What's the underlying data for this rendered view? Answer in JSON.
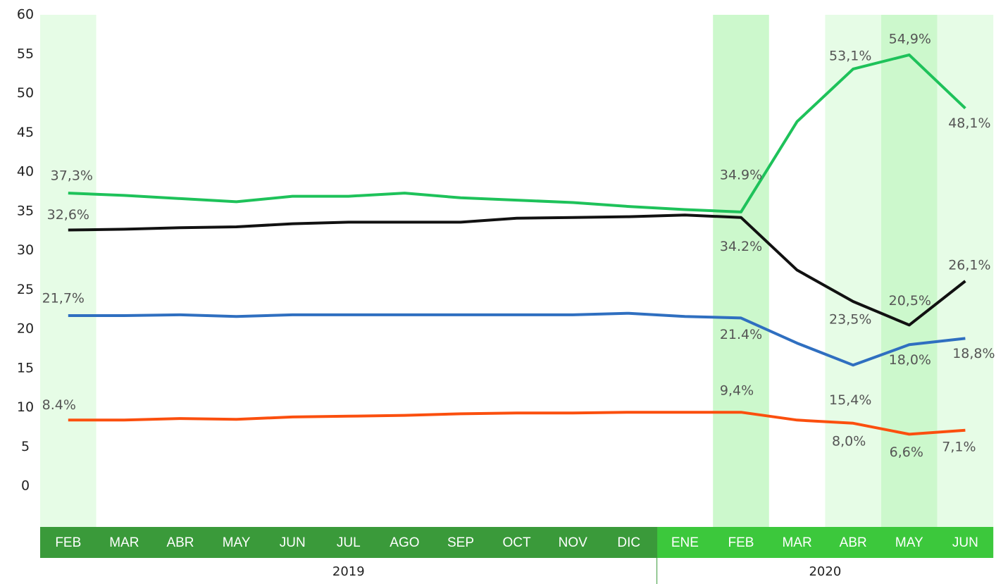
{
  "chart_data": {
    "type": "line",
    "categories": [
      "FEB",
      "MAR",
      "ABR",
      "MAY",
      "JUN",
      "JUL",
      "AGO",
      "SEP",
      "OCT",
      "NOV",
      "DIC",
      "ENE",
      "FEB",
      "MAR",
      "ABR",
      "MAY",
      "JUN"
    ],
    "groups": [
      {
        "label": "2019",
        "start": 0,
        "end": 10,
        "color": "#3a9a3a"
      },
      {
        "label": "2020",
        "start": 11,
        "end": 16,
        "color": "#3cc83c"
      }
    ],
    "highlight_bands": [
      {
        "category": 0,
        "color": "#e6fce6"
      },
      {
        "category": 12,
        "color": "#ccf8cc"
      },
      {
        "category": 14,
        "color": "#e6fce6"
      },
      {
        "category": 15,
        "color": "#ccf8cc"
      },
      {
        "category": 16,
        "color": "#e6fce6"
      }
    ],
    "ylim": [
      0,
      60
    ],
    "yticks": [
      0,
      5,
      10,
      15,
      20,
      25,
      30,
      35,
      40,
      45,
      50,
      55,
      60
    ],
    "series": [
      {
        "color": "#1ec25a",
        "values": [
          37.3,
          37.0,
          36.6,
          36.2,
          36.9,
          36.9,
          37.3,
          36.7,
          36.4,
          36.1,
          35.6,
          35.2,
          34.9,
          46.4,
          53.1,
          54.9,
          48.1
        ],
        "value_labels": [
          "37,3%",
          null,
          null,
          null,
          null,
          null,
          null,
          null,
          null,
          null,
          null,
          null,
          "34.9%",
          null,
          "53,1%",
          "54,9%",
          "48,1%"
        ]
      },
      {
        "color": "#111111",
        "values": [
          32.6,
          32.7,
          32.9,
          33.0,
          33.4,
          33.6,
          33.6,
          33.6,
          34.1,
          34.2,
          34.3,
          34.5,
          34.2,
          27.5,
          23.5,
          20.5,
          26.1
        ],
        "value_labels": [
          "32,6%",
          null,
          null,
          null,
          null,
          null,
          null,
          null,
          null,
          null,
          null,
          null,
          "34.2%",
          null,
          "23,5%",
          "20,5%",
          "26,1%"
        ]
      },
      {
        "color": "#2f6fc0",
        "values": [
          21.7,
          21.7,
          21.8,
          21.6,
          21.8,
          21.8,
          21.8,
          21.8,
          21.8,
          21.8,
          22.0,
          21.6,
          21.4,
          18.2,
          15.4,
          18.0,
          18.8
        ],
        "value_labels": [
          "21,7%",
          null,
          null,
          null,
          null,
          null,
          null,
          null,
          null,
          null,
          null,
          null,
          "21.4%",
          null,
          "15,4%",
          "18,0%",
          "18,8%"
        ]
      },
      {
        "color": "#fb4f0e",
        "values": [
          8.4,
          8.4,
          8.6,
          8.5,
          8.8,
          8.9,
          9.0,
          9.2,
          9.3,
          9.3,
          9.4,
          9.4,
          9.4,
          8.4,
          8.0,
          6.6,
          7.1
        ],
        "value_labels": [
          "8.4%",
          null,
          null,
          null,
          null,
          null,
          null,
          null,
          null,
          null,
          null,
          null,
          "9,4%",
          null,
          "8,0%",
          "6,6%",
          "7,1%"
        ]
      }
    ]
  }
}
